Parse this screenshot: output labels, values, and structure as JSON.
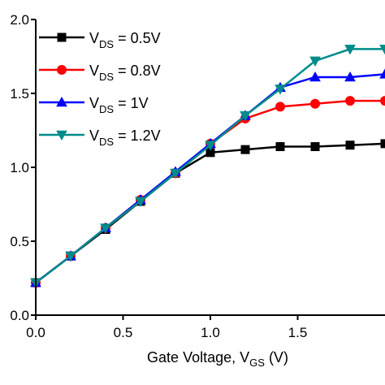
{
  "chart_data": {
    "type": "line",
    "title": "",
    "xlabel": "Gate Voltage, V",
    "xlabel_sub": "GS",
    "xlabel_suffix": " (V)",
    "ylabel": "",
    "xlim": [
      0,
      2.0
    ],
    "ylim": [
      0,
      2.0
    ],
    "x_ticks": [
      0.0,
      0.5,
      1.0,
      1.5
    ],
    "x_tick_labels": [
      "0.0",
      "0.5",
      "1.0",
      "1.5"
    ],
    "y_ticks": [
      0.0,
      0.5,
      1.0,
      1.5,
      2.0
    ],
    "y_tick_labels": [
      "0.0",
      "0.5",
      "1.0",
      "1.5",
      "2.0"
    ],
    "grid": false,
    "legend_position": "top-left",
    "series": [
      {
        "name": "V",
        "name_sub": "DS",
        "name_suffix": " = 0.5V",
        "color": "#000000",
        "marker": "square",
        "x": [
          0.0,
          0.2,
          0.4,
          0.6,
          0.8,
          1.0,
          1.2,
          1.4,
          1.6,
          1.8,
          2.0
        ],
        "y": [
          0.22,
          0.4,
          0.58,
          0.77,
          0.96,
          1.1,
          1.12,
          1.14,
          1.14,
          1.15,
          1.16
        ]
      },
      {
        "name": "V",
        "name_sub": "DS",
        "name_suffix": " = 0.8V",
        "color": "#ff0000",
        "marker": "circle",
        "x": [
          0.0,
          0.2,
          0.4,
          0.6,
          0.8,
          1.0,
          1.2,
          1.4,
          1.6,
          1.8,
          2.0
        ],
        "y": [
          0.22,
          0.4,
          0.59,
          0.78,
          0.96,
          1.16,
          1.33,
          1.41,
          1.43,
          1.45,
          1.45
        ]
      },
      {
        "name": "V",
        "name_sub": "DS",
        "name_suffix": " = 1V",
        "color": "#0000ff",
        "marker": "triangle-up",
        "x": [
          0.0,
          0.2,
          0.4,
          0.6,
          0.8,
          1.0,
          1.2,
          1.4,
          1.6,
          1.8,
          2.0
        ],
        "y": [
          0.22,
          0.4,
          0.59,
          0.78,
          0.97,
          1.16,
          1.35,
          1.54,
          1.61,
          1.61,
          1.63
        ]
      },
      {
        "name": "V",
        "name_sub": "DS",
        "name_suffix": " = 1.2V",
        "color": "#008b8b",
        "marker": "triangle-down",
        "x": [
          0.0,
          0.2,
          0.4,
          0.6,
          0.8,
          1.0,
          1.2,
          1.4,
          1.6,
          1.8,
          2.0
        ],
        "y": [
          0.22,
          0.4,
          0.59,
          0.77,
          0.96,
          1.15,
          1.35,
          1.53,
          1.72,
          1.8,
          1.8
        ]
      }
    ]
  }
}
